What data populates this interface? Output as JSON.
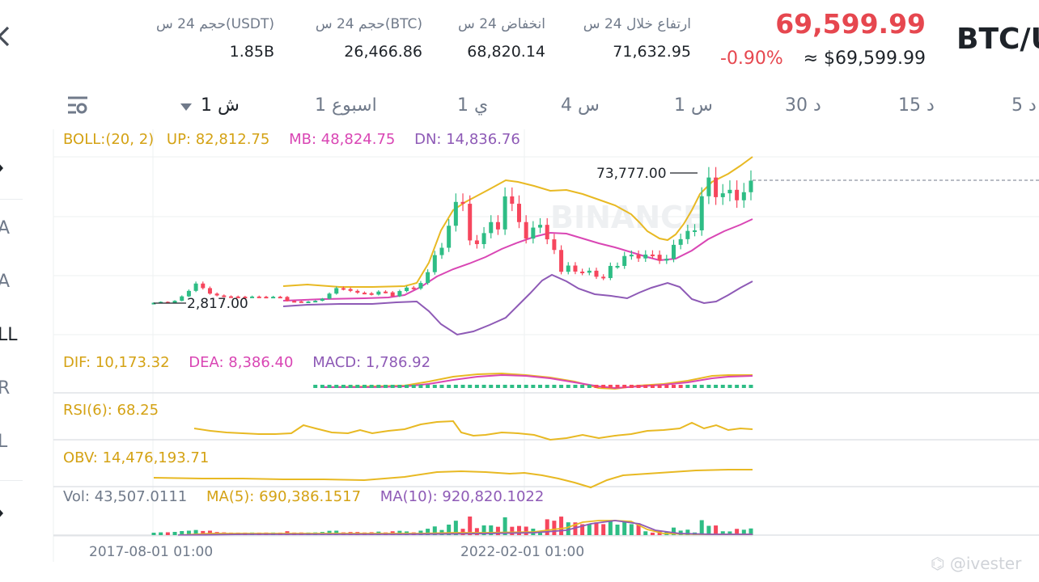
{
  "header": {
    "pair": "BTC/U",
    "last_price": "69,599.99",
    "change_pct": "-0.90%",
    "approx_usd": "≈ $69,599.99",
    "stats": [
      {
        "label": "ارتفاع خلال 24 س",
        "value": "71,632.95"
      },
      {
        "label": "انخفاض 24 س",
        "value": "68,820.14"
      },
      {
        "label": "حجم 24 س(BTC)",
        "value": "26,466.86"
      },
      {
        "label": "حجم 24 س(USDT)",
        "value": "1.85B"
      }
    ]
  },
  "timeframes": {
    "selected": "1 ش",
    "items": [
      "1 اسبوع",
      "1 ي",
      "4 س",
      "1 س",
      "30 د",
      "15 د",
      "5 د"
    ]
  },
  "sidebar_letters": [
    "A",
    "A",
    "LL",
    "R",
    "L"
  ],
  "indicators": {
    "boll": {
      "name": "BOLL:(20, 2)",
      "up": "UP: 82,812.75",
      "mb": "MB: 48,824.75",
      "dn": "DN: 14,836.76"
    },
    "macd": {
      "dif": "DIF: 10,173.32",
      "dea": "DEA: 8,386.40",
      "macd": "MACD: 1,786.92"
    },
    "rsi": "RSI(6): 68.25",
    "obv": "OBV: 14,476,193.71",
    "vol": {
      "vol": "Vol: 43,507.0111",
      "ma5": "MA(5): 690,386.1517",
      "ma10": "MA(10): 920,820.1022"
    }
  },
  "chart_annotations": {
    "high": "73,777.00",
    "low": "2,817.00"
  },
  "x_axis": [
    "2017-08-01 01:00",
    "2022-02-01 01:00"
  ],
  "watermark": "BINANCE",
  "colors": {
    "up": "#2ebd85",
    "down": "#f6465d",
    "boll_up": "#e8b923",
    "boll_mb": "#d946b4",
    "boll_dn": "#8e5ab6"
  },
  "chart_data": {
    "type": "candlestick",
    "title": "",
    "x_axis_labels": [
      "2017-08-01 01:00",
      "2022-02-01 01:00"
    ],
    "annotated_high": 73777.0,
    "annotated_low": 2817.0,
    "approx_closes": [
      3000,
      3500,
      2900,
      4100,
      6500,
      9500,
      13500,
      11000,
      8000,
      7000,
      6500,
      6400,
      6300,
      6200,
      6400,
      6300,
      6100,
      6300,
      6200,
      4000,
      3800,
      3500,
      3700,
      4100,
      5200,
      8000,
      11000,
      10500,
      9500,
      8500,
      8200,
      7500,
      9100,
      8700,
      6600,
      9400,
      11300,
      10800,
      13800,
      19700,
      29000,
      33000,
      45000,
      58000,
      57000,
      37000,
      35000,
      41000,
      47000,
      43000,
      61000,
      57000,
      47000,
      38000,
      44000,
      45500,
      37600,
      31800,
      19900,
      23300,
      20000,
      19400,
      20500,
      17200,
      16500,
      23100,
      23100,
      28500,
      29200,
      27200,
      29300,
      29200,
      26000,
      27000,
      34600,
      37700,
      42200,
      42500,
      61100,
      71300,
      60600,
      62700,
      64600,
      58900,
      63300,
      69600
    ]
  }
}
